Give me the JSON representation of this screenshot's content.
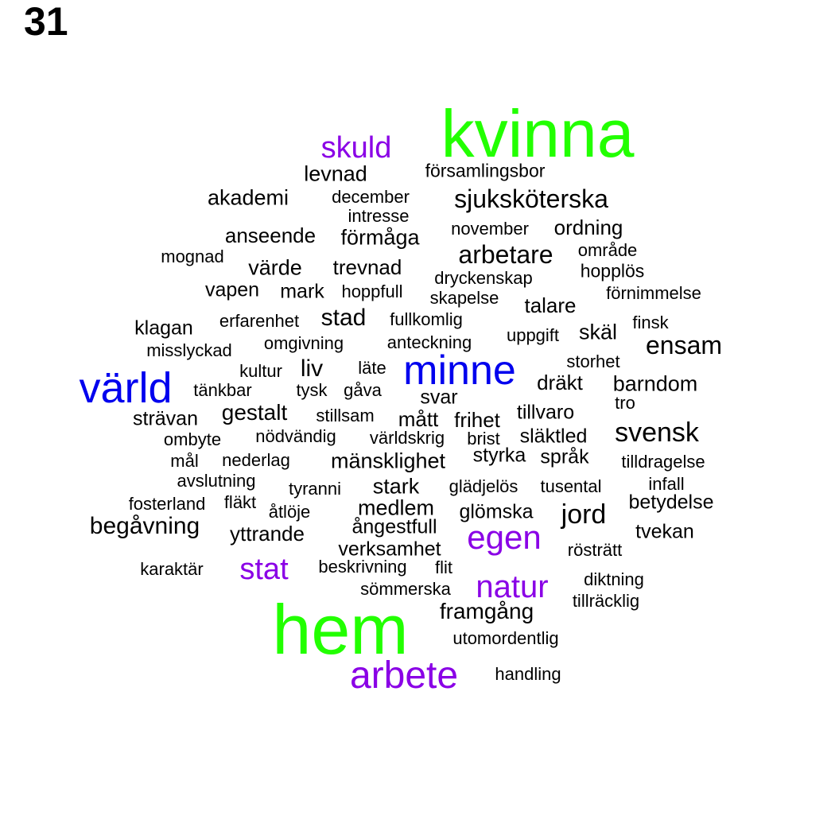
{
  "page_number": "31",
  "colors": {
    "tier1": "#22ff00",
    "tier2": "#0000ee",
    "tier3": "#8a00e6",
    "tier4": "#000000"
  },
  "words": [
    {
      "text": "kvinna",
      "tier": 1
    },
    {
      "text": "hem",
      "tier": 1
    },
    {
      "text": "värld",
      "tier": 2
    },
    {
      "text": "minne",
      "tier": 2
    },
    {
      "text": "arbete",
      "tier": 3
    },
    {
      "text": "skuld",
      "tier": 3
    },
    {
      "text": "egen",
      "tier": 3
    },
    {
      "text": "natur",
      "tier": 3
    },
    {
      "text": "stat",
      "tier": 3
    },
    {
      "text": "sjuksköterska",
      "tier": 4
    },
    {
      "text": "arbetare",
      "tier": 4
    },
    {
      "text": "ensam",
      "tier": 4
    },
    {
      "text": "svensk",
      "tier": 4
    },
    {
      "text": "jord",
      "tier": 4
    },
    {
      "text": "begåvning",
      "tier": 4
    },
    {
      "text": "gestalt",
      "tier": 4
    },
    {
      "text": "stad",
      "tier": 4
    },
    {
      "text": "liv",
      "tier": 4
    },
    {
      "text": "barndom",
      "tier": 4
    },
    {
      "text": "framgång",
      "tier": 4
    },
    {
      "text": "mänsklighet",
      "tier": 4
    },
    {
      "text": "förmåga",
      "tier": 4
    },
    {
      "text": "levnad",
      "tier": 4
    },
    {
      "text": "akademi",
      "tier": 4
    },
    {
      "text": "anseende",
      "tier": 4
    },
    {
      "text": "ordning",
      "tier": 4
    },
    {
      "text": "värde",
      "tier": 4
    },
    {
      "text": "trevnad",
      "tier": 4
    },
    {
      "text": "talare",
      "tier": 4
    },
    {
      "text": "skäl",
      "tier": 4
    },
    {
      "text": "stark",
      "tier": 4
    },
    {
      "text": "medlem",
      "tier": 4
    },
    {
      "text": "yttrande",
      "tier": 4
    },
    {
      "text": "frihet",
      "tier": 4
    },
    {
      "text": "mått",
      "tier": 4
    },
    {
      "text": "dräkt",
      "tier": 4
    },
    {
      "text": "betydelse",
      "tier": 4
    },
    {
      "text": "ångestfull",
      "tier": 4
    },
    {
      "text": "verksamhet",
      "tier": 4
    },
    {
      "text": "mark",
      "tier": 4
    },
    {
      "text": "vapen",
      "tier": 4
    },
    {
      "text": "klagan",
      "tier": 4
    },
    {
      "text": "strävan",
      "tier": 4
    },
    {
      "text": "svar",
      "tier": 4
    },
    {
      "text": "tillvaro",
      "tier": 4
    },
    {
      "text": "släktled",
      "tier": 4
    },
    {
      "text": "styrka",
      "tier": 4
    },
    {
      "text": "språk",
      "tier": 4
    },
    {
      "text": "glömska",
      "tier": 4
    },
    {
      "text": "tvekan",
      "tier": 4
    },
    {
      "text": "församlingsbor",
      "tier": 4
    },
    {
      "text": "december",
      "tier": 4
    },
    {
      "text": "intresse",
      "tier": 4
    },
    {
      "text": "november",
      "tier": 4
    },
    {
      "text": "område",
      "tier": 4
    },
    {
      "text": "mognad",
      "tier": 4
    },
    {
      "text": "hopplös",
      "tier": 4
    },
    {
      "text": "dryckenskap",
      "tier": 4
    },
    {
      "text": "hoppfull",
      "tier": 4
    },
    {
      "text": "skapelse",
      "tier": 4
    },
    {
      "text": "förnimmelse",
      "tier": 4
    },
    {
      "text": "erfarenhet",
      "tier": 4
    },
    {
      "text": "fullkomlig",
      "tier": 4
    },
    {
      "text": "finsk",
      "tier": 4
    },
    {
      "text": "uppgift",
      "tier": 4
    },
    {
      "text": "misslyckad",
      "tier": 4
    },
    {
      "text": "omgivning",
      "tier": 4
    },
    {
      "text": "anteckning",
      "tier": 4
    },
    {
      "text": "storhet",
      "tier": 4
    },
    {
      "text": "kultur",
      "tier": 4
    },
    {
      "text": "läte",
      "tier": 4
    },
    {
      "text": "tänkbar",
      "tier": 4
    },
    {
      "text": "tysk",
      "tier": 4
    },
    {
      "text": "gåva",
      "tier": 4
    },
    {
      "text": "tro",
      "tier": 4
    },
    {
      "text": "stillsam",
      "tier": 4
    },
    {
      "text": "ombyte",
      "tier": 4
    },
    {
      "text": "nödvändig",
      "tier": 4
    },
    {
      "text": "världskrig",
      "tier": 4
    },
    {
      "text": "brist",
      "tier": 4
    },
    {
      "text": "mål",
      "tier": 4
    },
    {
      "text": "nederlag",
      "tier": 4
    },
    {
      "text": "tilldragelse",
      "tier": 4
    },
    {
      "text": "avslutning",
      "tier": 4
    },
    {
      "text": "tyranni",
      "tier": 4
    },
    {
      "text": "glädjelös",
      "tier": 4
    },
    {
      "text": "tusental",
      "tier": 4
    },
    {
      "text": "infall",
      "tier": 4
    },
    {
      "text": "fosterland",
      "tier": 4
    },
    {
      "text": "fläkt",
      "tier": 4
    },
    {
      "text": "åtlöje",
      "tier": 4
    },
    {
      "text": "rösträtt",
      "tier": 4
    },
    {
      "text": "karaktär",
      "tier": 4
    },
    {
      "text": "beskrivning",
      "tier": 4
    },
    {
      "text": "flit",
      "tier": 4
    },
    {
      "text": "diktning",
      "tier": 4
    },
    {
      "text": "sömmerska",
      "tier": 4
    },
    {
      "text": "tillräcklig",
      "tier": 4
    },
    {
      "text": "utomordentlig",
      "tier": 4
    },
    {
      "text": "handling",
      "tier": 4
    }
  ]
}
